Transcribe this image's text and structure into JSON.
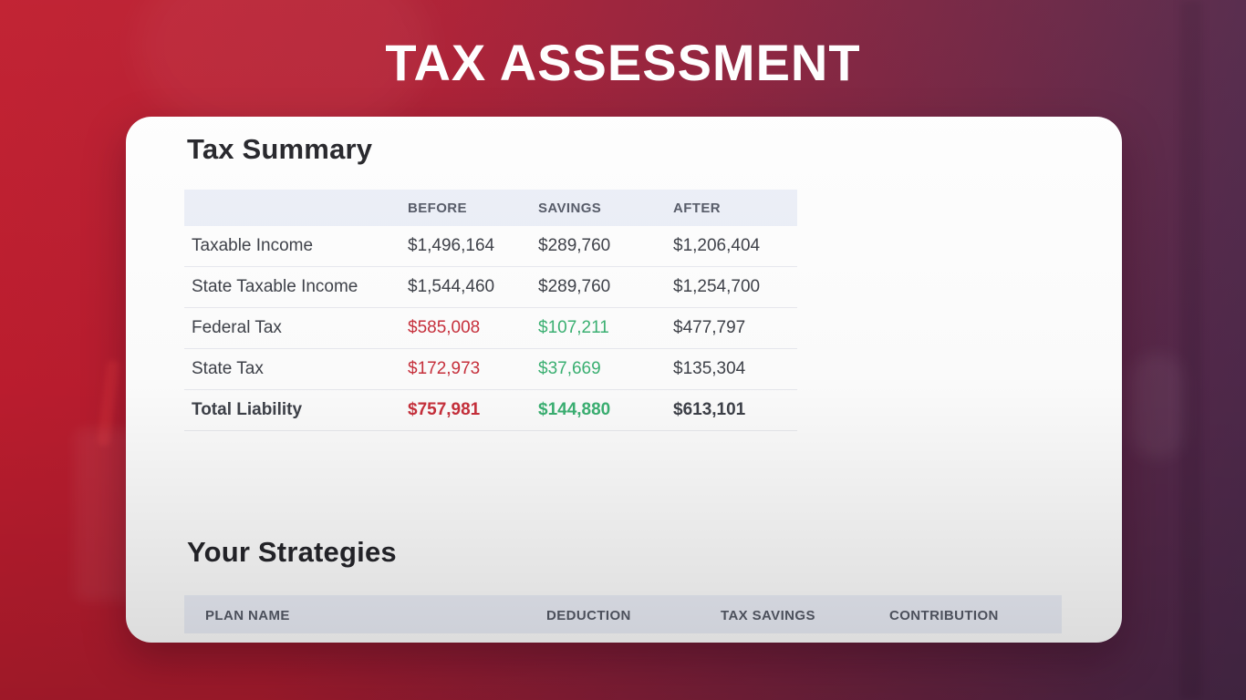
{
  "page": {
    "title": "TAX ASSESSMENT"
  },
  "theme": {
    "bg-red": "#c01d2e",
    "bg-purple": "#4a2a4b",
    "card-bg": "#ffffff",
    "frame": "rgba(255,255,255,0.5)",
    "head-bg": "#edf0f9",
    "divider": "#e9eaf0",
    "text-dark": "#26262b",
    "text-body": "#3e4149",
    "text-head": "#565b68",
    "negative": "#c9303c",
    "positive": "#3bb273",
    "title": "#ffffff"
  },
  "tax_summary": {
    "heading": "Tax Summary",
    "columns": [
      "BEFORE",
      "SAVINGS",
      "AFTER"
    ],
    "rows": [
      {
        "label": "Taxable Income",
        "before": "$1,496,164",
        "savings": "$289,760",
        "after": "$1,206,404"
      },
      {
        "label": "State Taxable Income",
        "before": "$1,544,460",
        "savings": "$289,760",
        "after": "$1,254,700"
      },
      {
        "label": "Federal Tax",
        "before": "$585,008",
        "savings": "$107,211",
        "after": "$477,797"
      },
      {
        "label": "State Tax",
        "before": "$172,973",
        "savings": "$37,669",
        "after": "$135,304"
      },
      {
        "label": "Total Liability",
        "before": "$757,981",
        "savings": "$144,880",
        "after": "$613,101"
      }
    ]
  },
  "strategies": {
    "heading": "Your Strategies",
    "columns": [
      "PLAN NAME",
      "DEDUCTION",
      "TAX SAVINGS",
      "CONTRIBUTION"
    ]
  }
}
